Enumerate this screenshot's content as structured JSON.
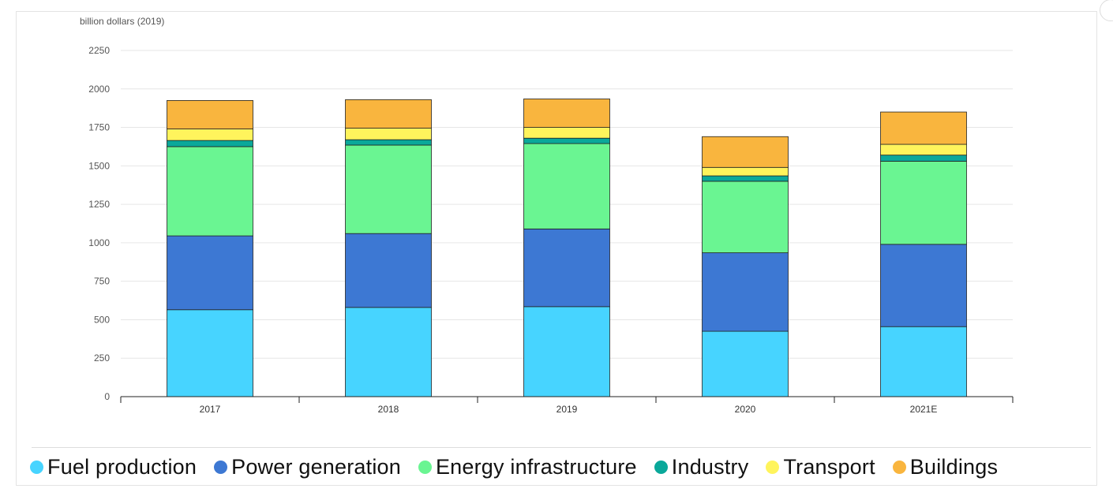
{
  "chart_data": {
    "type": "bar",
    "stacked": true,
    "ylabel": "billion dollars (2019)",
    "ylim": [
      0,
      2250
    ],
    "yticks": [
      0,
      250,
      500,
      750,
      1000,
      1250,
      1500,
      1750,
      2000,
      2250
    ],
    "grid": true,
    "legend_position": "bottom",
    "categories": [
      "2017",
      "2018",
      "2019",
      "2020",
      "2021E"
    ],
    "series": [
      {
        "name": "Fuel production",
        "color": "#47d4ff",
        "values": [
          565,
          580,
          585,
          425,
          455
        ]
      },
      {
        "name": "Power generation",
        "color": "#3d78d3",
        "values": [
          480,
          480,
          505,
          510,
          535
        ]
      },
      {
        "name": "Energy infrastructure",
        "color": "#6af592",
        "values": [
          580,
          575,
          555,
          465,
          540
        ]
      },
      {
        "name": "Industry",
        "color": "#0aa89a",
        "values": [
          40,
          35,
          35,
          35,
          40
        ]
      },
      {
        "name": "Transport",
        "color": "#fff45c",
        "values": [
          75,
          75,
          70,
          55,
          70
        ]
      },
      {
        "name": "Buildings",
        "color": "#f9b53e",
        "values": [
          185,
          185,
          185,
          200,
          210
        ]
      }
    ]
  }
}
